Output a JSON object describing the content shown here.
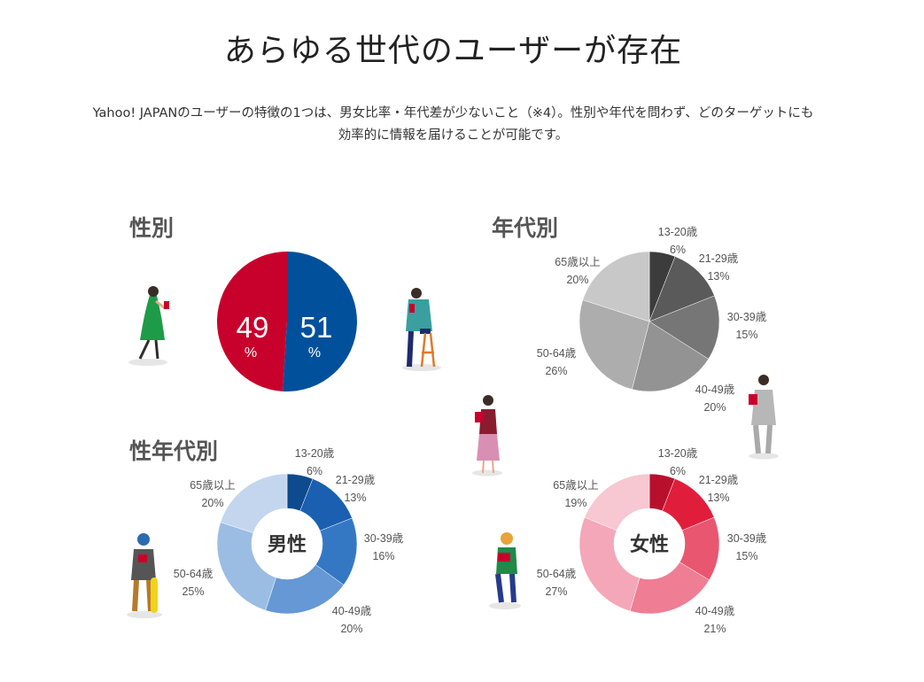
{
  "page": {
    "title": "あらゆる世代のユーザーが存在",
    "description_line1": "Yahoo! JAPANのユーザーの特徴の1つは、男女比率・年代差が少ないこと（※4）。性別や年代を問わず、どのターゲットにも",
    "description_line2": "効率的に情報を届けることが可能です。"
  },
  "chart_data": [
    {
      "id": "gender",
      "type": "pie",
      "title": "性別",
      "categories": [
        "女性",
        "男性"
      ],
      "values": [
        49,
        51
      ],
      "labels": [
        "49",
        "51"
      ],
      "unit": "%",
      "colors": [
        "#c8002c",
        "#00509b"
      ]
    },
    {
      "id": "age",
      "type": "pie",
      "title": "年代別",
      "categories": [
        "13-20歳",
        "21-29歳",
        "30-39歳",
        "40-49歳",
        "50-64歳",
        "65歳以上"
      ],
      "values": [
        6,
        13,
        15,
        20,
        26,
        20
      ],
      "value_labels": [
        "6%",
        "13%",
        "15%",
        "20%",
        "26%",
        "20%"
      ],
      "colors": [
        "#3c3c3c",
        "#5a5a5a",
        "#767676",
        "#939393",
        "#adadad",
        "#c8c8c8"
      ]
    },
    {
      "id": "male_age",
      "type": "pie",
      "subtype": "donut",
      "title": "性年代別",
      "center_label": "男性",
      "categories": [
        "13-20歳",
        "21-29歳",
        "30-39歳",
        "40-49歳",
        "50-64歳",
        "65歳以上"
      ],
      "values": [
        6,
        13,
        16,
        20,
        25,
        20
      ],
      "value_labels": [
        "6%",
        "13%",
        "16%",
        "20%",
        "25%",
        "20%"
      ],
      "colors": [
        "#0d4a8e",
        "#1a5fb0",
        "#3478c4",
        "#6598d4",
        "#9bbde3",
        "#c3d6ee"
      ]
    },
    {
      "id": "female_age",
      "type": "pie",
      "subtype": "donut",
      "center_label": "女性",
      "categories": [
        "13-20歳",
        "21-29歳",
        "30-39歳",
        "40-49歳",
        "50-64歳",
        "65歳以上"
      ],
      "values": [
        6,
        13,
        15,
        21,
        27,
        19
      ],
      "value_labels": [
        "6%",
        "13%",
        "15%",
        "21%",
        "27%",
        "19%"
      ],
      "colors": [
        "#b8102c",
        "#e01e3c",
        "#e95670",
        "#ef7d94",
        "#f4a7b8",
        "#f7c7d2"
      ]
    }
  ]
}
